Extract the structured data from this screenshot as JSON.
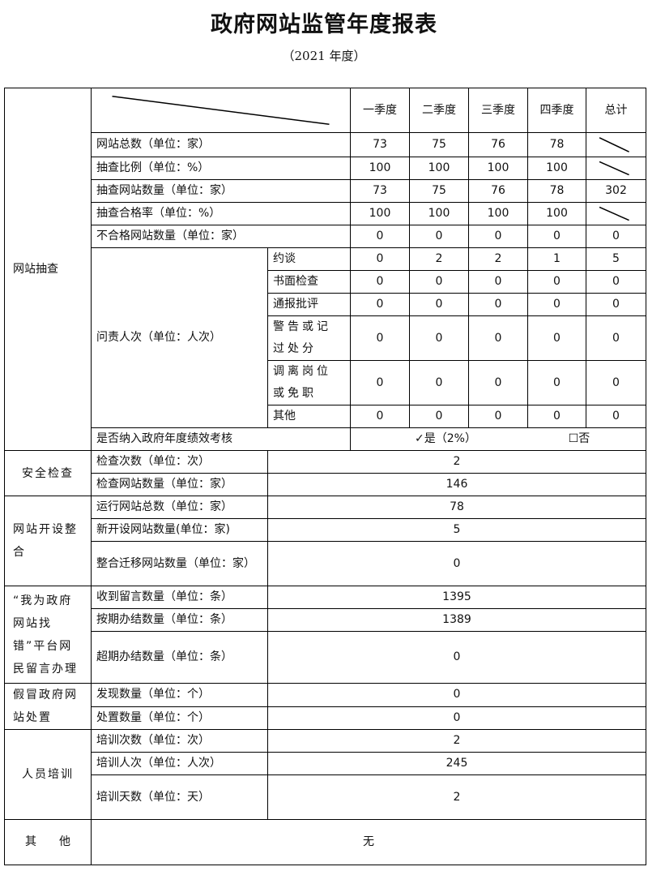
{
  "title": "政府网站监管年度报表",
  "subtitle": "（2021 年度）",
  "spot_check": {
    "section_label": "网站抽查",
    "columns": [
      "一季度",
      "二季度",
      "三季度",
      "四季度",
      "总计"
    ],
    "rows": [
      {
        "label": "网站总数（单位：家）",
        "values": [
          "73",
          "75",
          "76",
          "78",
          null
        ]
      },
      {
        "label": "抽查比例（单位：%）",
        "values": [
          "100",
          "100",
          "100",
          "100",
          null
        ]
      },
      {
        "label": "抽查网站数量（单位：家）",
        "values": [
          "73",
          "75",
          "76",
          "78",
          "302"
        ]
      },
      {
        "label": "抽查合格率（单位：%）",
        "values": [
          "100",
          "100",
          "100",
          "100",
          null
        ]
      },
      {
        "label": "不合格网站数量（单位：家）",
        "values": [
          "0",
          "0",
          "0",
          "0",
          "0"
        ]
      }
    ],
    "accountability": {
      "label": "问责人次（单位：人次）",
      "rows": [
        {
          "label": "约谈",
          "values": [
            "0",
            "2",
            "2",
            "1",
            "5"
          ]
        },
        {
          "label": "书面检查",
          "values": [
            "0",
            "0",
            "0",
            "0",
            "0"
          ]
        },
        {
          "label": "通报批评",
          "values": [
            "0",
            "0",
            "0",
            "0",
            "0"
          ]
        },
        {
          "label": "警告或记过处分",
          "values": [
            "0",
            "0",
            "0",
            "0",
            "0"
          ]
        },
        {
          "label": "调离岗位或免职",
          "values": [
            "0",
            "0",
            "0",
            "0",
            "0"
          ]
        },
        {
          "label": "其他",
          "values": [
            "0",
            "0",
            "0",
            "0",
            "0"
          ]
        }
      ]
    },
    "assessment": {
      "label": "是否纳入政府年度绩效考核",
      "yes": "✓是（2%）",
      "no": "☐否"
    }
  },
  "sections": [
    {
      "label": "安全检查",
      "rows": [
        {
          "label": "检查次数（单位：次）",
          "value": "2"
        },
        {
          "label": "检查网站数量（单位：家）",
          "value": "146"
        }
      ]
    },
    {
      "label": "网站开设整合",
      "rows": [
        {
          "label": "运行网站总数（单位：家）",
          "value": "78"
        },
        {
          "label": "新开设网站数量(单位：家)",
          "value": "5"
        },
        {
          "label": "整合迁移网站数量（单位：家）",
          "value": "0",
          "tall": true
        }
      ]
    },
    {
      "label": "“我为政府网站找错”平台网民留言办理",
      "rows": [
        {
          "label": "收到留言数量（单位：条）",
          "value": "1395"
        },
        {
          "label": "按期办结数量（单位：条）",
          "value": "1389"
        },
        {
          "label": "超期办结数量（单位：条）",
          "value": "0",
          "tall": true,
          "h": 64
        }
      ]
    },
    {
      "label": "假冒政府网站处置",
      "rows": [
        {
          "label": "发现数量（单位：个）",
          "value": "0"
        },
        {
          "label": "处置数量（单位：个）",
          "value": "0"
        }
      ]
    },
    {
      "label": "人员培训",
      "rows": [
        {
          "label": "培训次数（单位：次）",
          "value": "2"
        },
        {
          "label": "培训人次（单位：人次）",
          "value": "245"
        },
        {
          "label": "培训天数（单位：天）",
          "value": "2",
          "tall": true
        }
      ]
    }
  ],
  "other": {
    "label": "其　　他",
    "value": "无"
  }
}
